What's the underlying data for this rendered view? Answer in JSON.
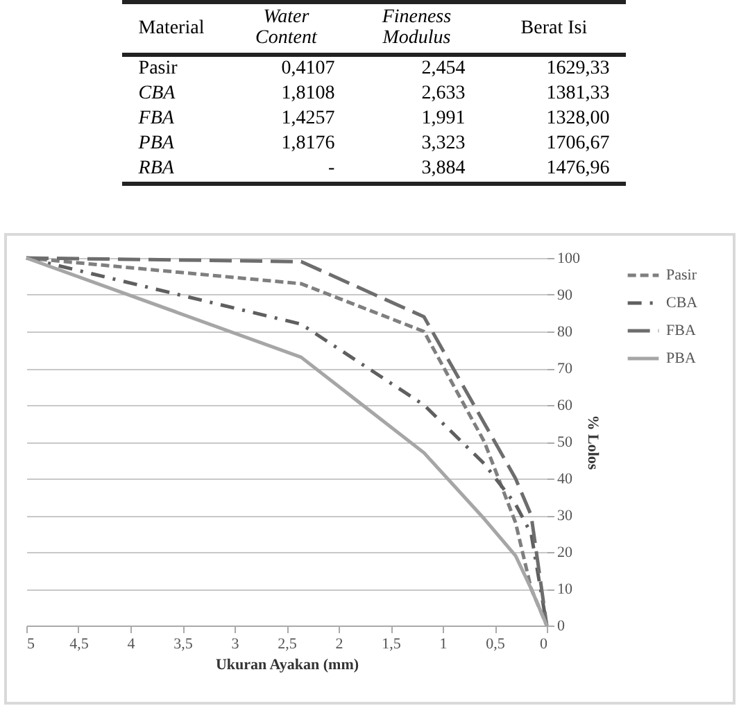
{
  "chart_data": [
    {
      "type": "other",
      "ylabel": "Material",
      "categories": [
        "Water Content",
        "Fineness Modulus",
        "Berat Isi"
      ],
      "y_categories": [
        "Pasir",
        "CBA",
        "FBA",
        "PBA",
        "RBA"
      ],
      "cell_labels": [
        [
          "0,4107",
          "2,454",
          "1629,33"
        ],
        [
          "1,8108",
          "2,633",
          "1381,33"
        ],
        [
          "1,4257",
          "1,991",
          "1328,00"
        ],
        [
          "1,8176",
          "3,323",
          "1706,67"
        ],
        [
          "-",
          "3,884",
          "1476,96"
        ]
      ]
    },
    {
      "type": "line",
      "xlabel": "Ukuran Ayakan (mm)",
      "ylabel": "% Lolos",
      "x": [
        5,
        2.36,
        1.18,
        0.6,
        0.3,
        0.15,
        0
      ],
      "series": [
        {
          "name": "Pasir",
          "color": "#7f7f7f",
          "line_style": "dashed",
          "values": [
            100,
            93,
            80,
            50,
            28,
            10,
            0
          ]
        },
        {
          "name": "CBA",
          "color": "#5f5f5f",
          "line_style": "dashed",
          "values": [
            100,
            82,
            60,
            44,
            33,
            25,
            0
          ]
        },
        {
          "name": "FBA",
          "color": "#6d6d6d",
          "line_style": "dashed",
          "values": [
            100,
            99,
            84,
            55,
            40,
            30,
            0
          ]
        },
        {
          "name": "PBA",
          "color": "#a6a6a6",
          "line_style": "solid",
          "values": [
            100,
            73,
            47,
            29,
            19,
            10,
            0
          ]
        }
      ],
      "xlim": [
        5,
        0
      ],
      "xticks": [
        {
          "value": 5,
          "label": "5"
        },
        {
          "value": 4.5,
          "label": "4,5"
        },
        {
          "value": 4,
          "label": "4"
        },
        {
          "value": 3.5,
          "label": "3,5"
        },
        {
          "value": 3,
          "label": "3"
        },
        {
          "value": 2.5,
          "label": "2,5"
        },
        {
          "value": 2,
          "label": "2"
        },
        {
          "value": 1.5,
          "label": "1,5"
        },
        {
          "value": 1,
          "label": "1"
        },
        {
          "value": 0.5,
          "label": "0,5"
        },
        {
          "value": 0,
          "label": "0"
        }
      ],
      "ylim": [
        0,
        100
      ],
      "yticks": [
        0,
        10,
        20,
        30,
        40,
        50,
        60,
        70,
        80,
        90,
        100
      ],
      "grid": "y",
      "legend": "right",
      "marker": "none"
    }
  ]
}
